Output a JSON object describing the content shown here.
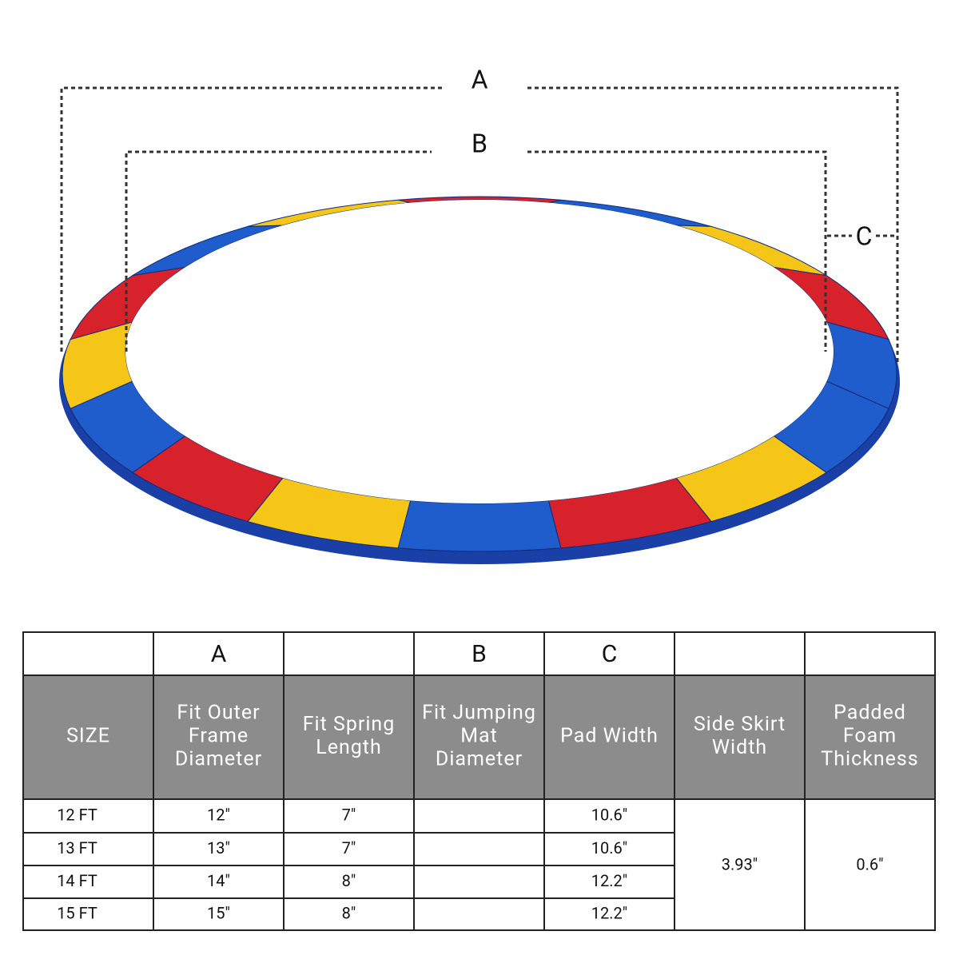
{
  "diagram": {
    "labels": {
      "a": "A",
      "b": "B",
      "c": "C"
    }
  },
  "table": {
    "letters": [
      null,
      "A",
      null,
      "B",
      "C",
      null,
      null
    ],
    "headers": [
      [
        "SIZE"
      ],
      [
        "Fit Outer",
        "Frame",
        "Diameter"
      ],
      [
        "Fit Spring",
        "Length"
      ],
      [
        "Fit Jumping",
        "Mat",
        "Diameter"
      ],
      [
        "Pad Width"
      ],
      [
        "Side Skirt",
        "Width"
      ],
      [
        "Padded",
        "Foam",
        "Thickness"
      ]
    ],
    "rows": [
      [
        "12 FT",
        "12″",
        "7″",
        null,
        "10.6″"
      ],
      [
        "13 FT",
        "13″",
        "7″",
        null,
        "10.6″"
      ],
      [
        "14 FT",
        "14″",
        "8″",
        null,
        "12.2″"
      ],
      [
        "15 FT",
        "15″",
        "8″",
        null,
        "12.2″"
      ]
    ],
    "side_skirt_width": "3.93″",
    "foam_thickness": "0.6″"
  }
}
